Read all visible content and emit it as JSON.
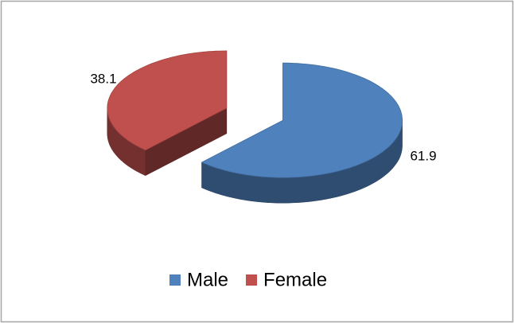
{
  "chart_data": {
    "type": "pie3d",
    "categories": [
      "Male",
      "Female"
    ],
    "values": [
      61.9,
      38.1
    ],
    "colors": [
      "#4f81bd",
      "#c0504d"
    ],
    "legend": "bottom"
  }
}
